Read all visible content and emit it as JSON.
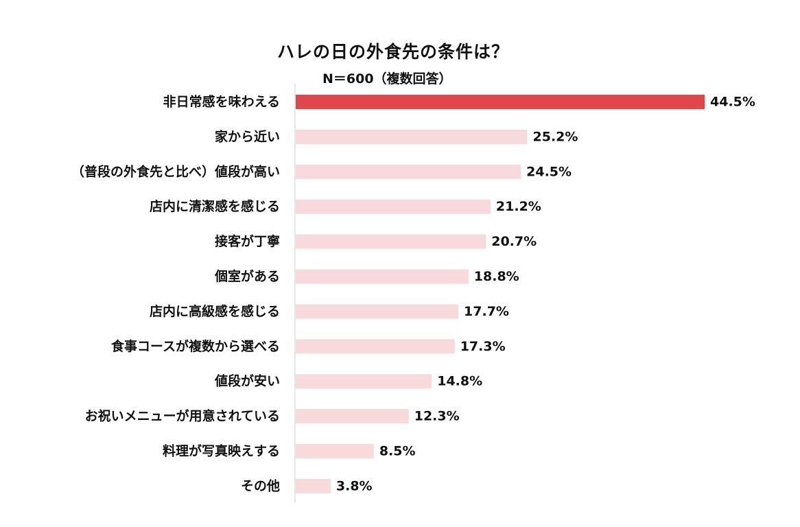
{
  "chart_data": {
    "type": "bar",
    "orientation": "horizontal",
    "title": "ハレの日の外食先の条件は？",
    "subtitle": "N＝600（複数回答）",
    "categories": [
      "非日常感を味わえる",
      "家から近い",
      "（普段の外食先と比べ）値段が高い",
      "店内に清潔感を感じる",
      "接客が丁寧",
      "個室がある",
      "店内に高級感を感じる",
      "食事コースが複数から選べる",
      "値段が安い",
      "お祝いメニューが用意されている",
      "料理が写真映えする",
      "その他"
    ],
    "values": [
      44.5,
      25.2,
      24.5,
      21.2,
      20.7,
      18.8,
      17.7,
      17.3,
      14.8,
      12.3,
      8.5,
      3.8
    ],
    "value_labels": [
      "44.5%",
      "25.2%",
      "24.5%",
      "21.2%",
      "20.7%",
      "18.8%",
      "17.7%",
      "17.3%",
      "14.8%",
      "12.3%",
      "8.5%",
      "3.8%"
    ],
    "xlim": [
      0,
      44.5
    ],
    "grid": false,
    "colors": {
      "highlight": "#e0474b",
      "default": "#f8dadc",
      "axis": "#cccccc"
    }
  }
}
